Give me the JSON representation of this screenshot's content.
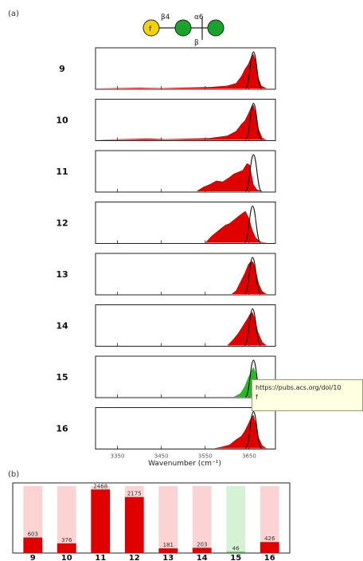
{
  "panel_a_label": "(a)",
  "panel_b_label": "(b)",
  "glycan": {
    "linkage1": "β4",
    "linkage2": "α6",
    "linkage3": "β",
    "residue_letter": "f",
    "colors": {
      "galactose": "#f5d300",
      "mannose": "#1aa32a"
    }
  },
  "tooltip_text": "https://pubs.acs.org/doi/10",
  "tooltip_line2": "f",
  "colors": {
    "spectrum_fill": "#e00000",
    "highlight_fill": "#22bb22",
    "frame": "#222222",
    "bar_red": "#e00000",
    "bar_green": "#22bb22",
    "bg_red": "#fbd3d3",
    "bg_green": "#d5f2d5"
  },
  "chart_data": [
    {
      "type": "area",
      "title": "",
      "xlabel": "Wavenumber (cm⁻¹)",
      "ylabel": "",
      "xlim": [
        3300,
        3710
      ],
      "xticks": [
        3350,
        3450,
        3550,
        3650
      ],
      "spectra": [
        {
          "label": "9",
          "experimental": [
            [
              3300,
              0
            ],
            [
              3400,
              0.02
            ],
            [
              3450,
              0.01
            ],
            [
              3560,
              0.04
            ],
            [
              3600,
              0.08
            ],
            [
              3620,
              0.15
            ],
            [
              3632,
              0.35
            ],
            [
              3640,
              0.55
            ],
            [
              3648,
              0.7
            ],
            [
              3655,
              0.92
            ],
            [
              3660,
              0.98
            ],
            [
              3665,
              0.8
            ],
            [
              3670,
              0.35
            ],
            [
              3678,
              0.08
            ],
            [
              3690,
              0
            ]
          ],
          "computed_peak": 3660
        },
        {
          "label": "10",
          "experimental": [
            [
              3300,
              0
            ],
            [
              3420,
              0.04
            ],
            [
              3460,
              0.02
            ],
            [
              3560,
              0.05
            ],
            [
              3600,
              0.12
            ],
            [
              3620,
              0.25
            ],
            [
              3632,
              0.45
            ],
            [
              3640,
              0.55
            ],
            [
              3648,
              0.75
            ],
            [
              3655,
              0.95
            ],
            [
              3660,
              1.0
            ],
            [
              3665,
              0.78
            ],
            [
              3672,
              0.3
            ],
            [
              3680,
              0.06
            ],
            [
              3690,
              0
            ]
          ],
          "computed_peak": 3660
        },
        {
          "label": "11",
          "experimental": [
            [
              3300,
              0
            ],
            [
              3530,
              0.0
            ],
            [
              3545,
              0.12
            ],
            [
              3560,
              0.2
            ],
            [
              3575,
              0.3
            ],
            [
              3590,
              0.28
            ],
            [
              3605,
              0.4
            ],
            [
              3615,
              0.5
            ],
            [
              3625,
              0.55
            ],
            [
              3635,
              0.6
            ],
            [
              3645,
              0.8
            ],
            [
              3652,
              0.75
            ],
            [
              3660,
              0.2
            ],
            [
              3668,
              0.05
            ],
            [
              3680,
              0
            ]
          ],
          "computed_peak": 3660
        },
        {
          "label": "12",
          "experimental": [
            [
              3300,
              0
            ],
            [
              3550,
              0.0
            ],
            [
              3565,
              0.2
            ],
            [
              3580,
              0.35
            ],
            [
              3595,
              0.5
            ],
            [
              3605,
              0.55
            ],
            [
              3615,
              0.65
            ],
            [
              3625,
              0.75
            ],
            [
              3635,
              0.85
            ],
            [
              3642,
              0.9
            ],
            [
              3650,
              0.7
            ],
            [
              3658,
              0.35
            ],
            [
              3665,
              0.15
            ],
            [
              3675,
              0.03
            ],
            [
              3690,
              0
            ]
          ],
          "computed_peak": 3658
        },
        {
          "label": "13",
          "experimental": [
            [
              3300,
              0
            ],
            [
              3610,
              0.0
            ],
            [
              3620,
              0.1
            ],
            [
              3630,
              0.35
            ],
            [
              3640,
              0.6
            ],
            [
              3648,
              0.85
            ],
            [
              3655,
              0.95
            ],
            [
              3660,
              0.9
            ],
            [
              3665,
              0.7
            ],
            [
              3672,
              0.3
            ],
            [
              3680,
              0.08
            ],
            [
              3690,
              0
            ]
          ],
          "computed_peak": 3658
        },
        {
          "label": "14",
          "experimental": [
            [
              3300,
              0
            ],
            [
              3600,
              0.0
            ],
            [
              3612,
              0.15
            ],
            [
              3625,
              0.35
            ],
            [
              3635,
              0.55
            ],
            [
              3645,
              0.75
            ],
            [
              3652,
              0.9
            ],
            [
              3658,
              0.95
            ],
            [
              3664,
              0.75
            ],
            [
              3670,
              0.4
            ],
            [
              3680,
              0.1
            ],
            [
              3690,
              0
            ]
          ],
          "computed_peak": 3658
        },
        {
          "label": "15",
          "experimental": [
            [
              3300,
              0
            ],
            [
              3615,
              0.0
            ],
            [
              3630,
              0.1
            ],
            [
              3640,
              0.3
            ],
            [
              3648,
              0.55
            ],
            [
              3655,
              0.75
            ],
            [
              3660,
              0.85
            ],
            [
              3665,
              0.7
            ],
            [
              3672,
              0.3
            ],
            [
              3680,
              0.08
            ],
            [
              3690,
              0
            ]
          ],
          "computed_peak": 3660,
          "highlight": true
        },
        {
          "label": "16",
          "experimental": [
            [
              3300,
              0
            ],
            [
              3570,
              0.0
            ],
            [
              3590,
              0.05
            ],
            [
              3605,
              0.1
            ],
            [
              3620,
              0.25
            ],
            [
              3632,
              0.35
            ],
            [
              3640,
              0.5
            ],
            [
              3648,
              0.7
            ],
            [
              3655,
              0.9
            ],
            [
              3660,
              0.95
            ],
            [
              3666,
              0.7
            ],
            [
              3672,
              0.3
            ],
            [
              3680,
              0.08
            ],
            [
              3690,
              0
            ]
          ],
          "computed_peak": 3660
        }
      ]
    },
    {
      "type": "bar",
      "title": "",
      "categories": [
        "9",
        "10",
        "11",
        "12",
        "13",
        "14",
        "15",
        "16"
      ],
      "values": [
        603,
        376,
        2468,
        2175,
        181,
        203,
        46,
        426
      ],
      "highlight_index": 6,
      "ylim": [
        0,
        2600
      ]
    }
  ]
}
